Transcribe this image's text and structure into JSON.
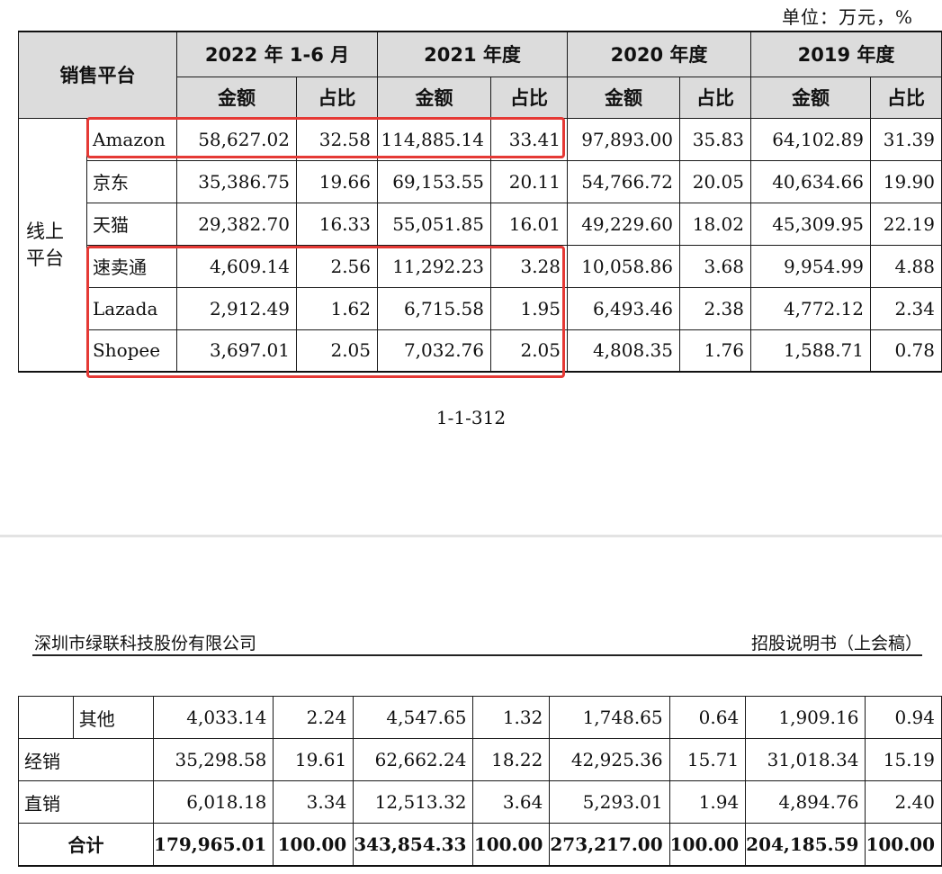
{
  "unit_label": "单位：万元，%",
  "columns": {
    "platform": "销售平台",
    "periods": [
      "2022 年 1-6 月",
      "2021 年度",
      "2020 年度",
      "2019 年度"
    ],
    "amount": "金额",
    "ratio": "占比"
  },
  "group_online": "线上平台",
  "rows_page1": [
    {
      "name": "Amazon",
      "values": [
        "58,627.02",
        "32.58",
        "114,885.14",
        "33.41",
        "97,893.00",
        "35.83",
        "64,102.89",
        "31.39"
      ]
    },
    {
      "name": "京东",
      "values": [
        "35,386.75",
        "19.66",
        "69,153.55",
        "20.11",
        "54,766.72",
        "20.05",
        "40,634.66",
        "19.90"
      ]
    },
    {
      "name": "天猫",
      "values": [
        "29,382.70",
        "16.33",
        "55,051.85",
        "16.01",
        "49,229.60",
        "18.02",
        "45,309.95",
        "22.19"
      ]
    },
    {
      "name": "速卖通",
      "values": [
        "4,609.14",
        "2.56",
        "11,292.23",
        "3.28",
        "10,058.86",
        "3.68",
        "9,954.99",
        "4.88"
      ]
    },
    {
      "name": "Lazada",
      "values": [
        "2,912.49",
        "1.62",
        "6,715.58",
        "1.95",
        "6,493.46",
        "2.38",
        "4,772.12",
        "2.34"
      ]
    },
    {
      "name": "Shopee",
      "values": [
        "3,697.01",
        "2.05",
        "7,032.76",
        "2.05",
        "4,808.35",
        "1.76",
        "1,588.71",
        "0.78"
      ]
    }
  ],
  "page_number": "1-1-312",
  "page2_header": {
    "company": "深圳市绿联科技股份有限公司",
    "doc": "招股说明书（上会稿）"
  },
  "rows_page2": [
    {
      "name": "其他",
      "values": [
        "4,033.14",
        "2.24",
        "4,547.65",
        "1.32",
        "1,748.65",
        "0.64",
        "1,909.16",
        "0.94"
      ]
    },
    {
      "name": "经销",
      "values": [
        "35,298.58",
        "19.61",
        "62,662.24",
        "18.22",
        "42,925.36",
        "15.71",
        "31,018.34",
        "15.19"
      ]
    },
    {
      "name": "直销",
      "values": [
        "6,018.18",
        "3.34",
        "12,513.32",
        "3.64",
        "5,293.01",
        "1.94",
        "4,894.76",
        "2.40"
      ]
    }
  ],
  "total_row": {
    "name": "合计",
    "values": [
      "179,965.01",
      "100.00",
      "343,854.33",
      "100.00",
      "273,217.00",
      "100.00",
      "204,185.59",
      "100.00"
    ]
  },
  "highlight_color": "#e53935"
}
